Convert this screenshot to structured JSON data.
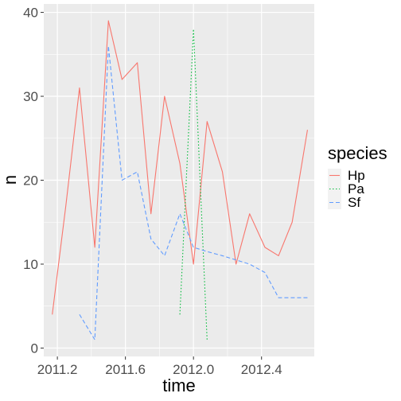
{
  "chart_data": {
    "type": "line",
    "xlabel": "time",
    "ylabel": "n",
    "xlim": [
      2011.12,
      2012.71
    ],
    "ylim": [
      -1,
      41
    ],
    "x_ticks": [
      2011.2,
      2011.6,
      2012.0,
      2012.4
    ],
    "x_tick_labels": [
      "2011.2",
      "2011.6",
      "2012.0",
      "2012.4"
    ],
    "y_ticks": [
      0,
      10,
      20,
      30,
      40
    ],
    "y_tick_labels": [
      "0",
      "10",
      "20",
      "30",
      "40"
    ],
    "grid": true,
    "legend": {
      "title": "species",
      "position": "right"
    },
    "series": [
      {
        "name": "Hp",
        "color": "#F8766D",
        "dash": "solid",
        "x": [
          2011.17,
          2011.25,
          2011.33,
          2011.42,
          2011.5,
          2011.58,
          2011.67,
          2011.75,
          2011.83,
          2011.92,
          2012.0,
          2012.08,
          2012.17,
          2012.25,
          2012.33,
          2012.42,
          2012.5,
          2012.58,
          2012.67
        ],
        "values": [
          4,
          17,
          31,
          12,
          39,
          32,
          34,
          16,
          30,
          22,
          10,
          27,
          21,
          10,
          16,
          12,
          11,
          15,
          26
        ]
      },
      {
        "name": "Pa",
        "color": "#00BA38",
        "dash": "dotted",
        "x": [
          2011.92,
          2012.0,
          2012.08
        ],
        "values": [
          4,
          38,
          1
        ]
      },
      {
        "name": "Sf",
        "color": "#619CFF",
        "dash": "dashed",
        "x": [
          2011.33,
          2011.42,
          2011.5,
          2011.58,
          2011.67,
          2011.75,
          2011.83,
          2011.92,
          2012.0,
          2012.08,
          2012.17,
          2012.25,
          2012.33,
          2012.42,
          2012.5,
          2012.58,
          2012.67
        ],
        "values": [
          4,
          1,
          36,
          20,
          21,
          13,
          11,
          16,
          12,
          11.5,
          11,
          10.5,
          10,
          9,
          6,
          6,
          6
        ]
      }
    ]
  }
}
